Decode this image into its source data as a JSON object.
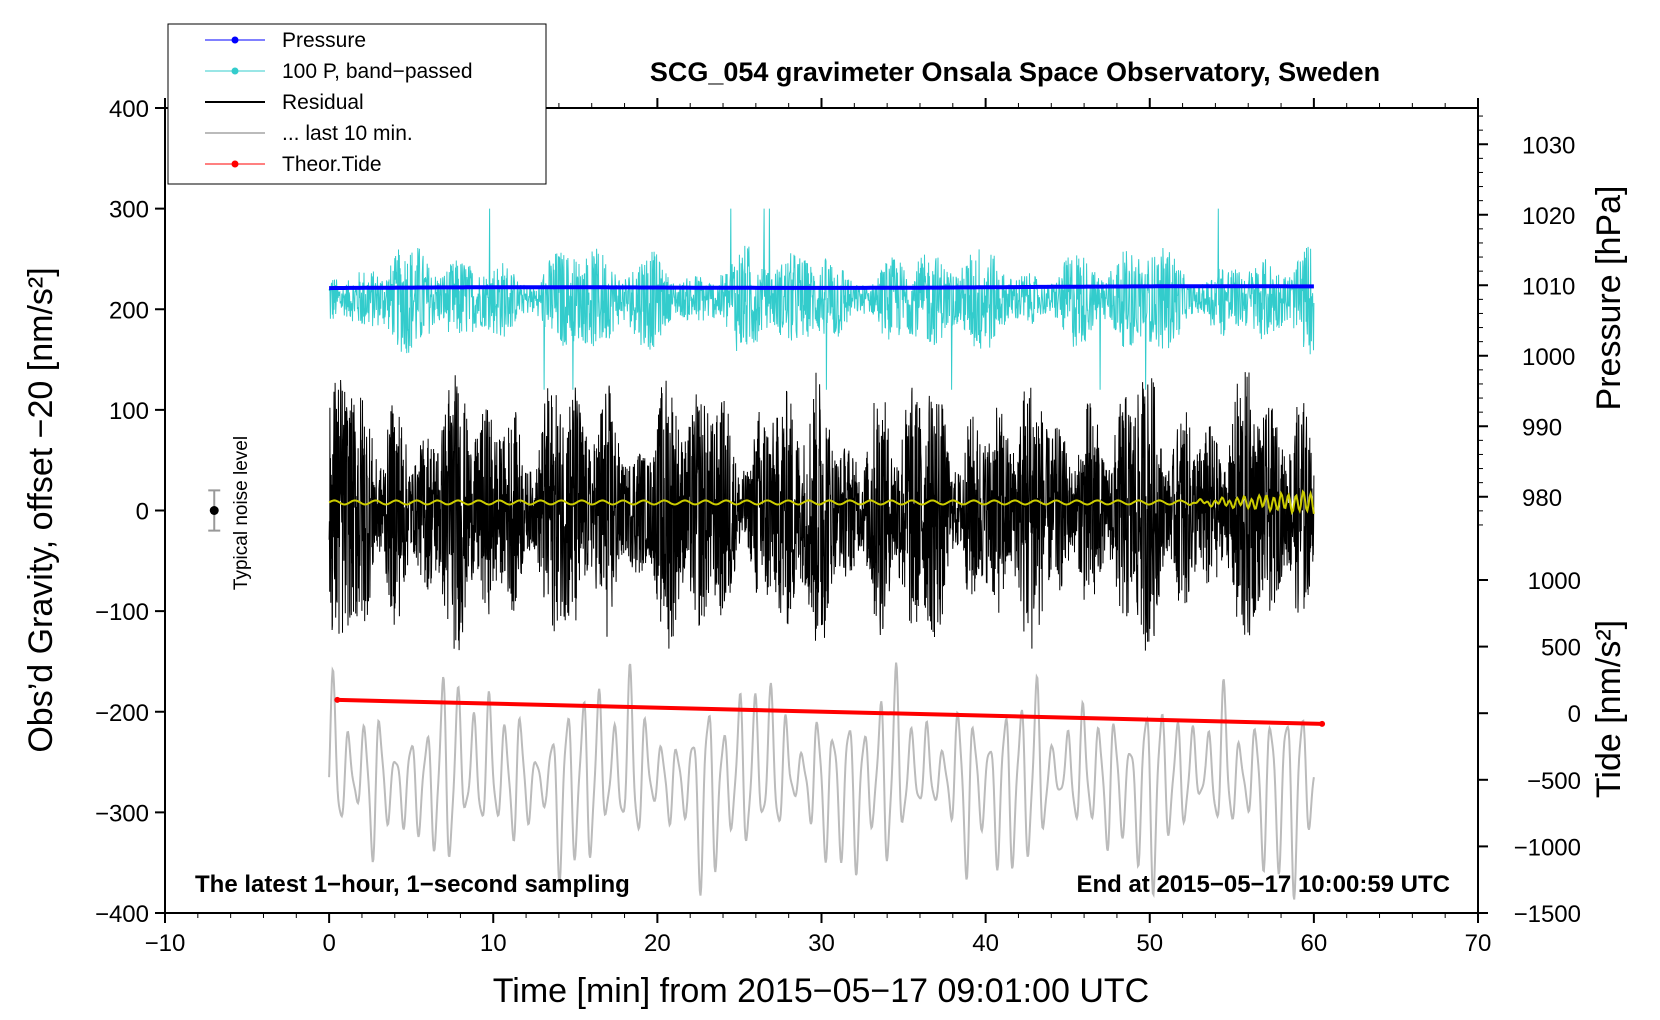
{
  "chart_data": {
    "type": "line",
    "title": "SCG_054 gravimeter Onsala Space Observatory, Sweden",
    "xlabel": "Time [min] from 2015−05−17 09:01:00 UTC",
    "ylabel_left": "Obs’d Gravity, offset −20 [nm/s²]",
    "ylabel_pressure": "Pressure [hPa]",
    "ylabel_tide": "Tide [nm/s²]",
    "xlim": [
      -10,
      70
    ],
    "ylim": [
      -400,
      400
    ],
    "pressure_lim": [
      975,
      1035
    ],
    "tide_lim": [
      -1500,
      1000
    ],
    "x_ticks": [
      {
        "value": -10,
        "label": "−10"
      },
      {
        "value": 0,
        "label": "0"
      },
      {
        "value": 10,
        "label": "10"
      },
      {
        "value": 20,
        "label": "20"
      },
      {
        "value": 30,
        "label": "30"
      },
      {
        "value": 40,
        "label": "40"
      },
      {
        "value": 50,
        "label": "50"
      },
      {
        "value": 60,
        "label": "60"
      },
      {
        "value": 70,
        "label": "70"
      }
    ],
    "y_ticks": [
      {
        "value": 400,
        "label": "400"
      },
      {
        "value": 300,
        "label": "300"
      },
      {
        "value": 200,
        "label": "200"
      },
      {
        "value": 100,
        "label": "100"
      },
      {
        "value": 0,
        "label": "0"
      },
      {
        "value": -100,
        "label": "−100"
      },
      {
        "value": -200,
        "label": "−200"
      },
      {
        "value": -300,
        "label": "−300"
      },
      {
        "value": -400,
        "label": "−400"
      }
    ],
    "pressure_ticks": [
      {
        "value": 1030,
        "label": "1030"
      },
      {
        "value": 1020,
        "label": "1020"
      },
      {
        "value": 1010,
        "label": "1010"
      },
      {
        "value": 1000,
        "label": "1000"
      },
      {
        "value": 990,
        "label": "990"
      },
      {
        "value": 980,
        "label": "980"
      }
    ],
    "tide_ticks": [
      {
        "value": 1000,
        "label": "1000"
      },
      {
        "value": 500,
        "label": "500"
      },
      {
        "value": 0,
        "label": "0"
      },
      {
        "value": -500,
        "label": "−500"
      },
      {
        "value": -1000,
        "label": "−1000"
      },
      {
        "value": -1500,
        "label": "−1500"
      }
    ],
    "legend": [
      {
        "label": "Pressure",
        "color": "#0000ff",
        "marker": true
      },
      {
        "label": "100 P, band−passed",
        "color": "#33cccc",
        "marker": true
      },
      {
        "label": "Residual",
        "color": "#000000",
        "marker": false
      },
      {
        "label": "... last 10 min.",
        "color": "#bbbbbb",
        "marker": false
      },
      {
        "label": "Theor.Tide",
        "color": "#ff0000",
        "marker": true
      }
    ],
    "series": [
      {
        "name": "Pressure",
        "axis": "pressure",
        "color": "#0000ff",
        "x_range": [
          0,
          60
        ],
        "start": 1009.6,
        "end": 1009.8
      },
      {
        "name": "100 P, band−passed",
        "axis": "left",
        "color": "#33cccc",
        "x_range": [
          0,
          60
        ],
        "center": 210,
        "amplitude_range": [
          15,
          90
        ]
      },
      {
        "name": "Residual",
        "axis": "left",
        "color": "#000000",
        "x_range": [
          0,
          60
        ],
        "center": 0,
        "amplitude_range": [
          40,
          140
        ]
      },
      {
        "name": "Residual smoothed",
        "axis": "left",
        "color": "#cccc00",
        "x_range": [
          0,
          60
        ],
        "center": 8
      },
      {
        "name": "... last 10 min.",
        "axis": "left",
        "color": "#bbbbbb",
        "x_range": [
          0,
          60
        ],
        "center": -265,
        "amplitude_range": [
          30,
          125
        ]
      },
      {
        "name": "Theor.Tide",
        "axis": "tide",
        "color": "#ff0000",
        "x_range": [
          0.5,
          60.5
        ],
        "start": 100,
        "end": -80
      }
    ],
    "noise_bar": {
      "x": -7,
      "y": 0,
      "half_range": 20,
      "label": "Typical noise level"
    },
    "annotation_left": "The latest 1−hour, 1−second sampling",
    "annotation_right": "End at 2015−05−17 10:00:59 UTC"
  }
}
